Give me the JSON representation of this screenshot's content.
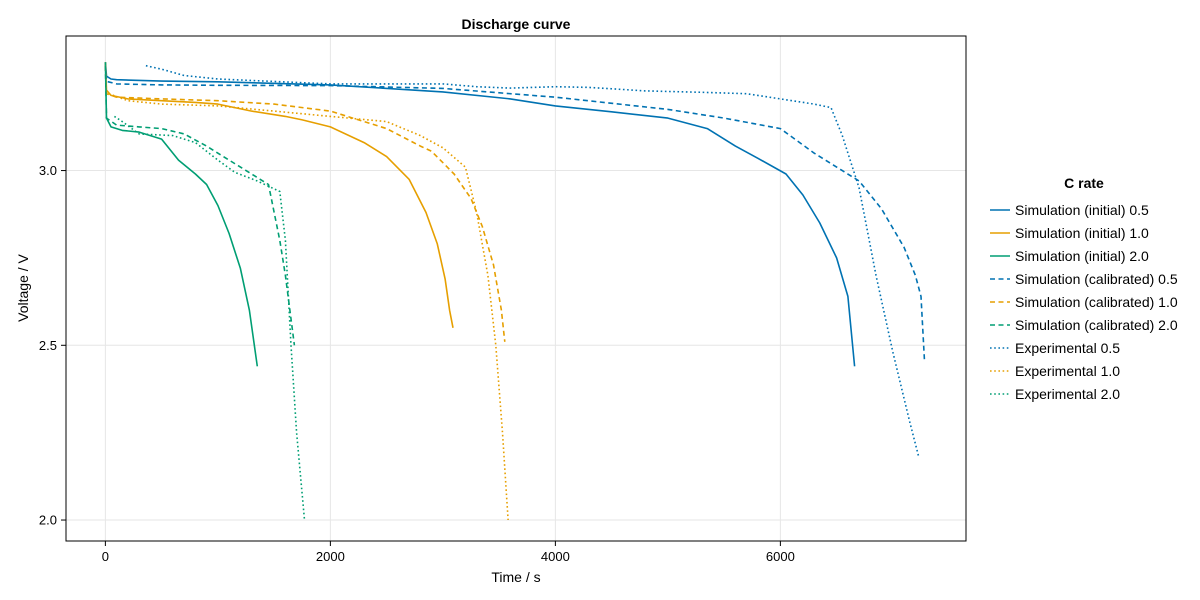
{
  "chart_data": {
    "type": "line",
    "title": "Discharge curve",
    "xlabel": "Time / s",
    "ylabel": "Voltage / V",
    "xlim": [
      -350,
      7650
    ],
    "ylim": [
      1.94,
      3.385
    ],
    "xticks": [
      0,
      2000,
      4000,
      6000
    ],
    "yticks": [
      2.0,
      2.5,
      3.0
    ],
    "xtick_labels": [
      "0",
      "2000",
      "4000",
      "6000"
    ],
    "ytick_labels": [
      "2.0",
      "2.5",
      "3.0"
    ],
    "grid": true,
    "legend": {
      "title": "C rate",
      "placement": "right"
    },
    "colors": {
      "c05": "#0072B2",
      "c10": "#E69F00",
      "c20": "#009E73"
    },
    "series": [
      {
        "name": "Simulation (initial) 0.5",
        "color": "#0072B2",
        "style": "solid",
        "points": [
          [
            0,
            3.31
          ],
          [
            10,
            3.27
          ],
          [
            50,
            3.262
          ],
          [
            100,
            3.26
          ],
          [
            500,
            3.256
          ],
          [
            1000,
            3.254
          ],
          [
            2000,
            3.245
          ],
          [
            3000,
            3.225
          ],
          [
            3600,
            3.205
          ],
          [
            4000,
            3.185
          ],
          [
            4500,
            3.168
          ],
          [
            5000,
            3.15
          ],
          [
            5350,
            3.12
          ],
          [
            5600,
            3.07
          ],
          [
            5800,
            3.035
          ],
          [
            6050,
            2.99
          ],
          [
            6200,
            2.93
          ],
          [
            6350,
            2.85
          ],
          [
            6500,
            2.75
          ],
          [
            6600,
            2.64
          ],
          [
            6660,
            2.44
          ]
        ]
      },
      {
        "name": "Simulation (initial) 1.0",
        "color": "#E69F00",
        "style": "solid",
        "points": [
          [
            0,
            3.31
          ],
          [
            10,
            3.23
          ],
          [
            50,
            3.215
          ],
          [
            200,
            3.205
          ],
          [
            500,
            3.2
          ],
          [
            800,
            3.195
          ],
          [
            1000,
            3.19
          ],
          [
            1300,
            3.17
          ],
          [
            1600,
            3.155
          ],
          [
            1750,
            3.145
          ],
          [
            2000,
            3.125
          ],
          [
            2300,
            3.08
          ],
          [
            2500,
            3.04
          ],
          [
            2700,
            2.975
          ],
          [
            2850,
            2.88
          ],
          [
            2950,
            2.79
          ],
          [
            3020,
            2.69
          ],
          [
            3060,
            2.6
          ],
          [
            3090,
            2.55
          ]
        ]
      },
      {
        "name": "Simulation (initial) 2.0",
        "color": "#009E73",
        "style": "solid",
        "points": [
          [
            0,
            3.31
          ],
          [
            10,
            3.15
          ],
          [
            50,
            3.125
          ],
          [
            150,
            3.115
          ],
          [
            300,
            3.11
          ],
          [
            500,
            3.09
          ],
          [
            650,
            3.03
          ],
          [
            800,
            2.99
          ],
          [
            900,
            2.96
          ],
          [
            1000,
            2.9
          ],
          [
            1100,
            2.82
          ],
          [
            1200,
            2.72
          ],
          [
            1280,
            2.6
          ],
          [
            1350,
            2.44
          ]
        ]
      },
      {
        "name": "Simulation (calibrated) 0.5",
        "color": "#0072B2",
        "style": "dashed",
        "points": [
          [
            0,
            3.3
          ],
          [
            10,
            3.255
          ],
          [
            100,
            3.248
          ],
          [
            500,
            3.245
          ],
          [
            1000,
            3.244
          ],
          [
            2000,
            3.243
          ],
          [
            3000,
            3.235
          ],
          [
            4000,
            3.21
          ],
          [
            5000,
            3.175
          ],
          [
            5500,
            3.15
          ],
          [
            6000,
            3.12
          ],
          [
            6300,
            3.05
          ],
          [
            6550,
            3.0
          ],
          [
            6700,
            2.97
          ],
          [
            6900,
            2.89
          ],
          [
            7100,
            2.78
          ],
          [
            7200,
            2.7
          ],
          [
            7250,
            2.64
          ],
          [
            7280,
            2.46
          ]
        ]
      },
      {
        "name": "Simulation (calibrated) 1.0",
        "color": "#E69F00",
        "style": "dashed",
        "points": [
          [
            0,
            3.3
          ],
          [
            10,
            3.22
          ],
          [
            100,
            3.21
          ],
          [
            500,
            3.205
          ],
          [
            1000,
            3.2
          ],
          [
            1500,
            3.19
          ],
          [
            2000,
            3.17
          ],
          [
            2500,
            3.12
          ],
          [
            2800,
            3.07
          ],
          [
            2900,
            3.055
          ],
          [
            3100,
            2.99
          ],
          [
            3250,
            2.92
          ],
          [
            3350,
            2.84
          ],
          [
            3450,
            2.73
          ],
          [
            3520,
            2.6
          ],
          [
            3550,
            2.51
          ]
        ]
      },
      {
        "name": "Simulation (calibrated) 2.0",
        "color": "#009E73",
        "style": "dashed",
        "points": [
          [
            0,
            3.3
          ],
          [
            10,
            3.15
          ],
          [
            100,
            3.13
          ],
          [
            300,
            3.125
          ],
          [
            500,
            3.12
          ],
          [
            700,
            3.105
          ],
          [
            900,
            3.07
          ],
          [
            1100,
            3.03
          ],
          [
            1300,
            2.99
          ],
          [
            1450,
            2.96
          ],
          [
            1550,
            2.8
          ],
          [
            1600,
            2.7
          ],
          [
            1640,
            2.6
          ],
          [
            1680,
            2.5
          ]
        ]
      },
      {
        "name": "Experimental 0.5",
        "color": "#0072B2",
        "style": "dotted",
        "points": [
          [
            360,
            3.3
          ],
          [
            500,
            3.29
          ],
          [
            700,
            3.272
          ],
          [
            1000,
            3.262
          ],
          [
            2000,
            3.248
          ],
          [
            3000,
            3.248
          ],
          [
            3300,
            3.24
          ],
          [
            3600,
            3.236
          ],
          [
            4000,
            3.24
          ],
          [
            4300,
            3.238
          ],
          [
            4800,
            3.228
          ],
          [
            5300,
            3.224
          ],
          [
            5700,
            3.22
          ],
          [
            6000,
            3.205
          ],
          [
            6300,
            3.19
          ],
          [
            6450,
            3.18
          ],
          [
            6550,
            3.1
          ],
          [
            6700,
            2.95
          ],
          [
            6850,
            2.7
          ],
          [
            7000,
            2.48
          ],
          [
            7150,
            2.28
          ],
          [
            7230,
            2.18
          ]
        ]
      },
      {
        "name": "Experimental 1.0",
        "color": "#E69F00",
        "style": "dotted",
        "points": [
          [
            30,
            3.22
          ],
          [
            200,
            3.2
          ],
          [
            500,
            3.19
          ],
          [
            1000,
            3.185
          ],
          [
            1500,
            3.17
          ],
          [
            2000,
            3.155
          ],
          [
            2500,
            3.14
          ],
          [
            2800,
            3.1
          ],
          [
            3000,
            3.065
          ],
          [
            3200,
            3.01
          ],
          [
            3300,
            2.88
          ],
          [
            3400,
            2.7
          ],
          [
            3470,
            2.5
          ],
          [
            3530,
            2.25
          ],
          [
            3580,
            2.0
          ]
        ]
      },
      {
        "name": "Experimental 2.0",
        "color": "#009E73",
        "style": "dotted",
        "points": [
          [
            80,
            3.155
          ],
          [
            150,
            3.14
          ],
          [
            300,
            3.105
          ],
          [
            600,
            3.1
          ],
          [
            800,
            3.08
          ],
          [
            1000,
            3.03
          ],
          [
            1150,
            2.995
          ],
          [
            1350,
            2.97
          ],
          [
            1550,
            2.94
          ],
          [
            1600,
            2.8
          ],
          [
            1650,
            2.5
          ],
          [
            1700,
            2.25
          ],
          [
            1770,
            2.0
          ]
        ]
      }
    ]
  }
}
